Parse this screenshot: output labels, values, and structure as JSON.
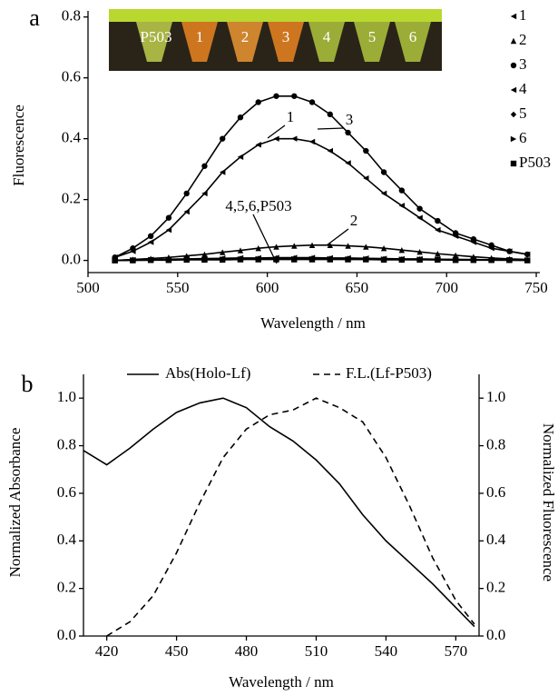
{
  "chart_data": [
    {
      "type": "line",
      "label": "a",
      "xlabel": "Wavelength / nm",
      "ylabel": "Fluorescence",
      "xlim": [
        500,
        752
      ],
      "xticks": [
        500,
        550,
        600,
        650,
        700,
        750
      ],
      "ylim": [
        -0.04,
        0.82
      ],
      "yticks": [
        {
          "value": 0,
          "label": "0.0"
        },
        0.2,
        0.4,
        0.6,
        0.8
      ],
      "x": [
        515,
        525,
        535,
        545,
        555,
        565,
        575,
        585,
        595,
        605,
        615,
        625,
        635,
        645,
        655,
        665,
        675,
        685,
        695,
        705,
        715,
        725,
        735,
        745
      ],
      "series": [
        {
          "name": "1",
          "color": "#000000",
          "marker": "triangle-left",
          "values": [
            0.01,
            0.03,
            0.06,
            0.1,
            0.16,
            0.22,
            0.29,
            0.34,
            0.38,
            0.4,
            0.4,
            0.39,
            0.36,
            0.32,
            0.27,
            0.22,
            0.18,
            0.14,
            0.1,
            0.08,
            0.06,
            0.04,
            0.03,
            0.02
          ]
        },
        {
          "name": "2",
          "color": "#000000",
          "marker": "triangle-up",
          "values": [
            0.0,
            0.003,
            0.006,
            0.01,
            0.015,
            0.02,
            0.027,
            0.033,
            0.04,
            0.045,
            0.048,
            0.05,
            0.05,
            0.048,
            0.045,
            0.04,
            0.034,
            0.028,
            0.022,
            0.017,
            0.012,
            0.008,
            0.005,
            0.003
          ]
        },
        {
          "name": "3",
          "color": "#000000",
          "marker": "circle",
          "values": [
            0.01,
            0.04,
            0.08,
            0.14,
            0.22,
            0.31,
            0.4,
            0.47,
            0.52,
            0.54,
            0.54,
            0.52,
            0.48,
            0.42,
            0.36,
            0.29,
            0.23,
            0.17,
            0.13,
            0.09,
            0.07,
            0.05,
            0.03,
            0.02
          ]
        },
        {
          "name": "4",
          "color": "#000000",
          "marker": "triangle-left",
          "values": [
            0.0,
            0.002,
            0.003,
            0.004,
            0.005,
            0.006,
            0.007,
            0.008,
            0.008,
            0.009,
            0.009,
            0.009,
            0.008,
            0.008,
            0.007,
            0.006,
            0.005,
            0.005,
            0.004,
            0.003,
            0.003,
            0.002,
            0.002,
            0.001
          ]
        },
        {
          "name": "5",
          "color": "#000000",
          "marker": "diamond",
          "values": [
            0.0,
            0.001,
            0.002,
            0.003,
            0.004,
            0.005,
            0.005,
            0.006,
            0.006,
            0.007,
            0.007,
            0.007,
            0.006,
            0.006,
            0.005,
            0.005,
            0.004,
            0.004,
            0.003,
            0.003,
            0.002,
            0.002,
            0.001,
            0.001
          ]
        },
        {
          "name": "6",
          "color": "#000000",
          "marker": "triangle-right",
          "values": [
            0.0,
            0.001,
            0.001,
            0.002,
            0.003,
            0.003,
            0.004,
            0.004,
            0.005,
            0.005,
            0.005,
            0.005,
            0.005,
            0.004,
            0.004,
            0.004,
            0.003,
            0.003,
            0.002,
            0.002,
            0.002,
            0.001,
            0.001,
            0.001
          ]
        },
        {
          "name": "P503",
          "color": "#000000",
          "marker": "square",
          "values": [
            0.0,
            0.0,
            0.001,
            0.001,
            0.002,
            0.002,
            0.002,
            0.003,
            0.003,
            0.003,
            0.003,
            0.003,
            0.003,
            0.003,
            0.003,
            0.002,
            0.002,
            0.002,
            0.002,
            0.001,
            0.001,
            0.001,
            0.001,
            0.0
          ]
        }
      ],
      "annotations": [
        "1",
        "3",
        "4,5,6,P503",
        "2"
      ],
      "inset_labels": [
        "P503",
        "1",
        "2",
        "3",
        "4",
        "5",
        "6"
      ]
    },
    {
      "type": "line",
      "label": "b",
      "xlabel": "Wavelength / nm",
      "ylabel": "Normalized Absorbance",
      "y2label": "Normalized Fluorescence",
      "xlim": [
        410,
        580
      ],
      "xticks": [
        420,
        450,
        480,
        510,
        540,
        570
      ],
      "ylim": [
        0,
        1.1
      ],
      "yticks": [
        {
          "value": 0,
          "label": "0.0"
        },
        0.2,
        0.4,
        0.6,
        0.8,
        {
          "value": 1,
          "label": "1.0"
        }
      ],
      "y2lim": [
        0,
        1.1
      ],
      "y2ticks": [
        {
          "value": 0,
          "label": "0.0"
        },
        0.2,
        0.4,
        0.6,
        0.8,
        {
          "value": 1,
          "label": "1.0"
        }
      ],
      "series": [
        {
          "name": "Abs(Holo-Lf)",
          "color": "#000000",
          "dash": false,
          "x": [
            410,
            420,
            430,
            440,
            450,
            460,
            470,
            480,
            490,
            500,
            510,
            520,
            530,
            540,
            550,
            560,
            570,
            578
          ],
          "values": [
            0.78,
            0.72,
            0.79,
            0.87,
            0.94,
            0.98,
            1.0,
            0.96,
            0.88,
            0.82,
            0.74,
            0.64,
            0.51,
            0.4,
            0.31,
            0.22,
            0.12,
            0.04
          ]
        },
        {
          "name": "F.L.(Lf-P503)",
          "color": "#000000",
          "dash": true,
          "axis": "y2",
          "x": [
            420,
            430,
            440,
            450,
            460,
            470,
            480,
            490,
            500,
            510,
            520,
            530,
            540,
            550,
            560,
            570,
            578
          ],
          "values": [
            0.0,
            0.06,
            0.17,
            0.35,
            0.56,
            0.75,
            0.87,
            0.93,
            0.95,
            1.0,
            0.96,
            0.9,
            0.75,
            0.55,
            0.33,
            0.15,
            0.05
          ]
        }
      ]
    }
  ]
}
